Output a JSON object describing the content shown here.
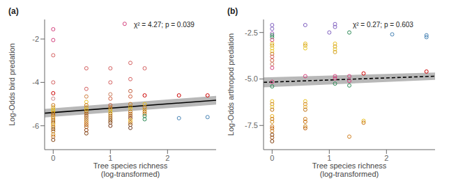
{
  "chart_data": [
    {
      "type": "scatter",
      "title": "(a)",
      "xlabel": "Tree species richness\n(log-transformed)",
      "ylabel": "Log-Odds bird predation",
      "annotations": [
        "χ² = 4.27; p = 0.039"
      ],
      "xlim": [
        -0.15,
        2.85
      ],
      "ylim": [
        -7.1,
        -1.1
      ],
      "xticks": [
        0,
        1,
        2
      ],
      "yticks": [
        -6,
        -4,
        -2
      ],
      "series": [
        {
          "type": "band",
          "x": [
            -0.15,
            2.85
          ],
          "low": [
            -5.62,
            -5.02
          ],
          "high": [
            -5.22,
            -4.62
          ],
          "color": "#b8b8b8"
        },
        {
          "type": "line",
          "x": [
            -0.15,
            2.85
          ],
          "values": [
            -5.42,
            -4.82
          ],
          "color": "#000000",
          "line_style": "solid"
        },
        {
          "type": "scatter",
          "marker": "open_circle",
          "x": [
            0,
            0,
            0,
            0,
            0,
            0,
            0,
            0,
            0,
            0,
            0,
            0,
            0,
            0,
            0,
            0,
            0,
            0,
            0,
            0,
            0,
            0,
            0,
            0,
            0.58,
            0.58,
            0.58,
            0.58,
            0.58,
            0.58,
            0.58,
            0.58,
            0.58,
            0.58,
            0.58,
            0.58,
            0.58,
            0.58,
            0.58,
            0.58,
            0.58,
            1.0,
            1.0,
            1.0,
            1.0,
            1.0,
            1.0,
            1.0,
            1.0,
            1.0,
            1.0,
            1.0,
            1.0,
            1.0,
            1.0,
            1.25,
            1.35,
            1.35,
            1.35,
            1.35,
            1.35,
            1.35,
            1.35,
            1.35,
            1.35,
            1.35,
            1.35,
            1.35,
            1.35,
            1.35,
            1.35,
            1.6,
            1.6,
            1.6,
            1.6,
            1.6,
            1.6,
            1.6,
            1.6,
            1.6,
            2.2,
            2.2,
            2.7,
            2.7
          ],
          "values": [
            -1.55,
            -2.05,
            -2.75,
            -4.0,
            -4.5,
            -4.75,
            -5.05,
            -5.15,
            -5.25,
            -5.33,
            -5.42,
            -5.5,
            -5.58,
            -5.65,
            -5.73,
            -5.82,
            -5.9,
            -5.97,
            -6.05,
            -6.15,
            -6.25,
            -6.4,
            -6.5,
            -6.65,
            -3.35,
            -4.3,
            -4.65,
            -4.9,
            -5.05,
            -5.15,
            -5.25,
            -5.35,
            -5.45,
            -5.55,
            -5.65,
            -5.75,
            -5.85,
            -5.95,
            -6.05,
            -6.2,
            -6.35,
            -3.35,
            -4.0,
            -4.55,
            -4.75,
            -5.05,
            -5.15,
            -5.25,
            -5.35,
            -5.45,
            -5.55,
            -5.65,
            -5.75,
            -5.85,
            -6.0,
            -1.3,
            -3.1,
            -3.85,
            -4.4,
            -4.65,
            -5.0,
            -5.12,
            -5.22,
            -5.35,
            -5.45,
            -5.55,
            -5.65,
            -5.75,
            -5.85,
            -5.95,
            -6.1,
            -3.35,
            -5.0,
            -5.15,
            -5.25,
            -5.35,
            -5.45,
            -5.55,
            -5.7,
            -4.6,
            -5.65,
            -4.6,
            -4.6,
            -5.6
          ],
          "colors": [
            "#d4407c",
            "#d4407c",
            "#d46060",
            "#d46060",
            "#cc0000",
            "#cc8888",
            "#c87820",
            "#d4a020",
            "#e8c020",
            "#e8c820",
            "#c07010",
            "#b06010",
            "#e8a020",
            "#d09020",
            "#b87010",
            "#a06010",
            "#c07818",
            "#e8b828",
            "#c07020",
            "#805010",
            "#b06010",
            "#d09018",
            "#c06010",
            "#804010",
            "#d46060",
            "#d46060",
            "#d08040",
            "#e8c020",
            "#c87820",
            "#d4a020",
            "#e8c820",
            "#c07010",
            "#b06010",
            "#a05010",
            "#b07020",
            "#c07820",
            "#d08018",
            "#c06010",
            "#b06010",
            "#904010",
            "#804010",
            "#d46060",
            "#d46060",
            "#cc8060",
            "#d06040",
            "#c06040",
            "#c87820",
            "#d4a020",
            "#e8c820",
            "#b87010",
            "#b06810",
            "#a06010",
            "#905010",
            "#804010",
            "#703010",
            "#d4407c",
            "#d46060",
            "#d46060",
            "#c06040",
            "#d06040",
            "#c87820",
            "#d4a020",
            "#e8c820",
            "#c07010",
            "#b06010",
            "#a05010",
            "#904010",
            "#e8c020",
            "#d08020",
            "#804010",
            "#6b3a1f",
            "#d46060",
            "#e8c020",
            "#c87820",
            "#d4a020",
            "#c07010",
            "#b87010",
            "#2e8b57",
            "#2e8b57",
            "#cc0000",
            "#4682b4",
            "#cc0000",
            "#cc0000",
            "#4682b4"
          ]
        }
      ]
    },
    {
      "type": "scatter",
      "title": "(b)",
      "xlabel": "Tree species richness\n(log-transformed)",
      "ylabel": "Log-Odds arthropod predation",
      "annotations": [
        "χ² = 0.27; p = 0.603"
      ],
      "xlim": [
        -0.15,
        2.85
      ],
      "ylim": [
        -8.8,
        -1.8
      ],
      "xticks": [
        0,
        1,
        2
      ],
      "yticks": [
        -7.5,
        {
          "value": -5.0,
          "label": "-5.0"
        },
        -2.5
      ],
      "series": [
        {
          "type": "band",
          "x": [
            -0.15,
            2.85
          ],
          "low": [
            -5.45,
            -5.05
          ],
          "high": [
            -4.92,
            -4.65
          ],
          "color": "#b8b8b8"
        },
        {
          "type": "line",
          "x": [
            -0.15,
            2.85
          ],
          "values": [
            -5.18,
            -4.85
          ],
          "color": "#000000",
          "line_style": "dashed"
        },
        {
          "type": "scatter",
          "marker": "open_circle",
          "x": [
            0,
            0,
            0,
            0,
            0,
            0,
            0,
            0,
            0,
            0,
            0,
            0,
            0,
            0,
            0,
            0,
            0,
            0,
            0,
            0,
            0,
            0,
            0,
            0,
            0,
            0,
            0,
            0,
            0,
            0,
            0.58,
            0.58,
            0.58,
            0.58,
            0.58,
            0.58,
            0.58,
            0.58,
            0.58,
            0.58,
            0.58,
            0.58,
            0.58,
            1.0,
            1.1,
            1.1,
            1.1,
            1.1,
            1.1,
            1.1,
            1.1,
            1.1,
            1.1,
            1.35,
            1.35,
            1.35,
            1.35,
            1.35,
            1.6,
            1.6,
            1.6,
            2.1,
            2.7,
            2.7,
            2.7
          ],
          "values": [
            -2.1,
            -2.3,
            -2.55,
            -2.65,
            -2.75,
            -2.9,
            -3.1,
            -3.2,
            -3.35,
            -3.5,
            -3.65,
            -3.8,
            -4.0,
            -4.2,
            -4.4,
            -5.15,
            -5.4,
            -6.2,
            -6.35,
            -6.5,
            -6.65,
            -7.0,
            -7.15,
            -7.3,
            -7.55,
            -7.65,
            -7.8,
            -8.0,
            -8.15,
            -8.35,
            -2.1,
            -3.1,
            -3.2,
            -3.35,
            -6.2,
            -6.35,
            -6.5,
            -6.65,
            -7.15,
            -7.3,
            -7.55,
            -7.65,
            -4.85,
            -2.5,
            -2.05,
            -2.2,
            -3.1,
            -3.25,
            -3.4,
            -3.55,
            -4.85,
            -4.97,
            -5.25,
            -4.85,
            -5.1,
            -2.5,
            -5.35,
            -8.1,
            -7.25,
            -7.35,
            -4.7,
            -2.6,
            -2.65,
            -2.75,
            -4.6
          ],
          "colors": [
            "#8060c0",
            "#8060c0",
            "#9b59b6",
            "#2e8b57",
            "#2e8b57",
            "#d4407c",
            "#e8c020",
            "#d4a020",
            "#e8c020",
            "#e8c820",
            "#c87820",
            "#d46060",
            "#d06040",
            "#cc8060",
            "#d4407c",
            "#d4407c",
            "#2e8b57",
            "#e8c020",
            "#d08020",
            "#e8c820",
            "#c07010",
            "#e8b020",
            "#c87010",
            "#d09020",
            "#d08020",
            "#c06010",
            "#d08020",
            "#804010",
            "#a05010",
            "#804010",
            "#8060c0",
            "#e8c020",
            "#d4a020",
            "#e8c820",
            "#e8c020",
            "#d08020",
            "#e8b020",
            "#c07010",
            "#d08020",
            "#c87010",
            "#d09020",
            "#c06010",
            "#d4407c",
            "#8060c0",
            "#8060c0",
            "#8060c0",
            "#e8c020",
            "#d4a020",
            "#e8c820",
            "#d4a020",
            "#d4407c",
            "#d4407c",
            "#2e8b57",
            "#d4407c",
            "#d4407c",
            "#2e8b57",
            "#2e8b57",
            "#d08020",
            "#e8c020",
            "#c87010",
            "#cc0000",
            "#4682b4",
            "#4682b4",
            "#4682b4",
            "#cc0000"
          ]
        }
      ]
    }
  ]
}
